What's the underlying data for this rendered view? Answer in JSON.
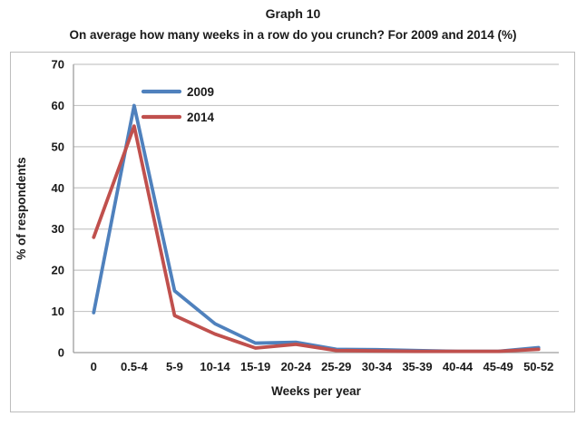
{
  "chart_data": {
    "type": "line",
    "title": "Graph 10",
    "subtitle": "On average how many weeks in a row do you crunch? For 2009 and 2014 (%)",
    "categories": [
      "0",
      "0.5-4",
      "5-9",
      "10-14",
      "15-19",
      "20-24",
      "25-29",
      "30-34",
      "35-39",
      "40-44",
      "45-49",
      "50-52"
    ],
    "series": [
      {
        "name": "2009",
        "color": "#4F81BD",
        "values": [
          9.7,
          60,
          15,
          7,
          2.3,
          2.5,
          0.8,
          0.7,
          0.5,
          0.3,
          0.3,
          1.2
        ]
      },
      {
        "name": "2014",
        "color": "#C0504D",
        "values": [
          28,
          55,
          9,
          4.5,
          1.1,
          2,
          0.5,
          0.4,
          0.3,
          0.3,
          0.3,
          0.8
        ]
      }
    ],
    "xlabel": "Weeks per year",
    "ylabel": "% of respondents",
    "ylim": [
      0,
      70
    ],
    "yticks": [
      0,
      10,
      20,
      30,
      40,
      50,
      60,
      70
    ],
    "grid": true,
    "legend_position": "inside-top-left",
    "colors": {
      "gridline": "#c6c6c6",
      "axis": "#9d9d9d",
      "text": "#1a1a1a",
      "border": "#bdbdbd",
      "background": "#ffffff"
    }
  }
}
